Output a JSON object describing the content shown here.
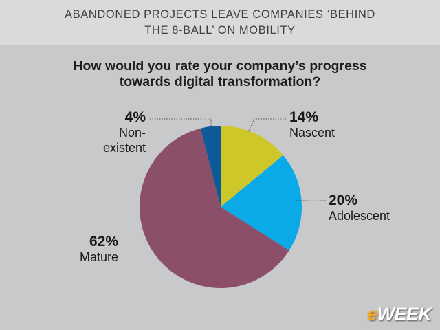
{
  "header": {
    "line1": "ABANDONED PROJECTS LEAVE COMPANIES ‘BEHIND",
    "line2": "THE 8-BALL’ ON MOBILITY"
  },
  "chart_data": {
    "type": "pie",
    "title_line1": "How would you rate your company’s progress",
    "title_line2": "towards digital transformation?",
    "slices": [
      {
        "label": "Nascent",
        "value": 14,
        "display": "14%",
        "color": "#cdc72a"
      },
      {
        "label": "Adolescent",
        "value": 20,
        "display": "20%",
        "color": "#0aa9e8"
      },
      {
        "label": "Mature",
        "value": 62,
        "display": "62%",
        "color": "#8c4f6a"
      },
      {
        "label": "Non-existent",
        "value": 4,
        "display": "4%",
        "color": "#0c5b98"
      }
    ]
  },
  "logo": {
    "e": "e",
    "rest": "WEEK"
  }
}
